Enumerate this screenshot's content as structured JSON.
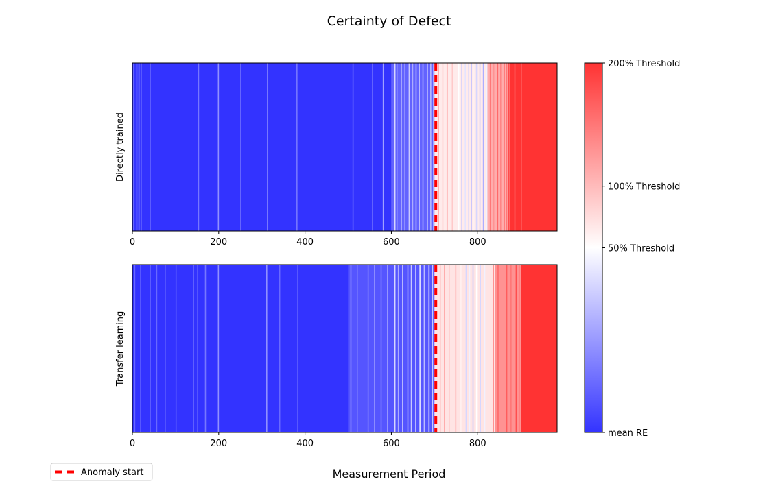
{
  "chart_data": {
    "type": "heatmap",
    "title": "Certainty of Defect",
    "xlabel": "Measurement Period",
    "anomaly_start": 703,
    "legend": {
      "label": "Anomaly start",
      "placement": "bottom-left",
      "color": "#ff0000"
    },
    "colormap": {
      "name": "bwr",
      "low_color": "#3333ff",
      "mid_color": "#ffffff",
      "high_color": "#ff3333",
      "value_range": [
        0,
        3
      ],
      "ticks": [
        {
          "label": "mean RE",
          "value": 0
        },
        {
          "label": "50% Threshold",
          "value": 1.5
        },
        {
          "label": "100% Threshold",
          "value": 2
        },
        {
          "label": "200% Threshold",
          "value": 3
        }
      ]
    },
    "panels": [
      {
        "ylabel": "Directly trained",
        "xlim": [
          0,
          984
        ],
        "xticks": [
          0,
          200,
          400,
          600,
          800
        ],
        "segments": [
          {
            "from": 0,
            "to": 600,
            "value": 0
          },
          {
            "from": 600,
            "to": 700,
            "value": 0.35
          },
          {
            "from": 700,
            "to": 820,
            "value": 1.65
          },
          {
            "from": 820,
            "to": 870,
            "value": 2.1
          },
          {
            "from": 870,
            "to": 984,
            "value": 3
          }
        ],
        "highlights": [
          {
            "at": 2,
            "value": 0.5
          },
          {
            "at": 9,
            "value": 0.5
          },
          {
            "at": 14,
            "value": 0.6
          },
          {
            "at": 19,
            "value": 0.5
          },
          {
            "at": 40,
            "value": 0.4
          },
          {
            "at": 152,
            "value": 0.5
          },
          {
            "at": 198,
            "value": 0.7
          },
          {
            "at": 250,
            "value": 0.5
          },
          {
            "at": 312,
            "value": 0.7
          },
          {
            "at": 380,
            "value": 0.5
          },
          {
            "at": 510,
            "value": 0.4
          },
          {
            "at": 555,
            "value": 0.4
          },
          {
            "at": 580,
            "value": 0.8
          },
          {
            "at": 607,
            "value": 1.2
          },
          {
            "at": 612,
            "value": 0.7
          },
          {
            "at": 622,
            "value": 0.9
          },
          {
            "at": 630,
            "value": 0.8
          },
          {
            "at": 640,
            "value": 1.1
          },
          {
            "at": 648,
            "value": 0.9
          },
          {
            "at": 656,
            "value": 1.0
          },
          {
            "at": 663,
            "value": 1.3
          },
          {
            "at": 672,
            "value": 0.9
          },
          {
            "at": 682,
            "value": 1.2
          },
          {
            "at": 690,
            "value": 1.0
          },
          {
            "at": 697,
            "value": 1.3
          },
          {
            "at": 708,
            "value": 2.1
          },
          {
            "at": 718,
            "value": 1.9
          },
          {
            "at": 728,
            "value": 2.2
          },
          {
            "at": 740,
            "value": 1.9
          },
          {
            "at": 755,
            "value": 1.5
          },
          {
            "at": 762,
            "value": 1.1
          },
          {
            "at": 770,
            "value": 1.3
          },
          {
            "at": 778,
            "value": 1.2
          },
          {
            "at": 784,
            "value": 1.0
          },
          {
            "at": 790,
            "value": 1.6
          },
          {
            "at": 796,
            "value": 1.2
          },
          {
            "at": 804,
            "value": 1.1
          },
          {
            "at": 812,
            "value": 0.9
          },
          {
            "at": 820,
            "value": 1.4
          },
          {
            "at": 828,
            "value": 2.5
          },
          {
            "at": 836,
            "value": 2.3
          },
          {
            "at": 845,
            "value": 2.6
          },
          {
            "at": 852,
            "value": 2.4
          },
          {
            "at": 860,
            "value": 2.7
          },
          {
            "at": 866,
            "value": 2.5
          },
          {
            "at": 872,
            "value": 2.6
          },
          {
            "at": 885,
            "value": 2.6
          },
          {
            "at": 900,
            "value": 2.7
          }
        ]
      },
      {
        "ylabel": "Transfer learning",
        "xlim": [
          0,
          984
        ],
        "xticks": [
          0,
          200,
          400,
          600,
          800
        ],
        "segments": [
          {
            "from": 0,
            "to": 500,
            "value": 0
          },
          {
            "from": 500,
            "to": 700,
            "value": 0.25
          },
          {
            "from": 700,
            "to": 840,
            "value": 1.7
          },
          {
            "from": 840,
            "to": 900,
            "value": 2.3
          },
          {
            "from": 900,
            "to": 984,
            "value": 3
          }
        ],
        "highlights": [
          {
            "at": 4,
            "value": 0.4
          },
          {
            "at": 18,
            "value": 0.4
          },
          {
            "at": 40,
            "value": 0.4
          },
          {
            "at": 55,
            "value": 0.4
          },
          {
            "at": 75,
            "value": 0.3
          },
          {
            "at": 100,
            "value": 0.3
          },
          {
            "at": 140,
            "value": 0.5
          },
          {
            "at": 150,
            "value": 0.4
          },
          {
            "at": 168,
            "value": 0.5
          },
          {
            "at": 198,
            "value": 0.7
          },
          {
            "at": 310,
            "value": 0.7
          },
          {
            "at": 340,
            "value": 0.4
          },
          {
            "at": 382,
            "value": 0.4
          },
          {
            "at": 505,
            "value": 0.7
          },
          {
            "at": 520,
            "value": 0.5
          },
          {
            "at": 545,
            "value": 0.6
          },
          {
            "at": 560,
            "value": 0.8
          },
          {
            "at": 575,
            "value": 0.6
          },
          {
            "at": 590,
            "value": 0.8
          },
          {
            "at": 607,
            "value": 1.2
          },
          {
            "at": 615,
            "value": 0.9
          },
          {
            "at": 625,
            "value": 1.1
          },
          {
            "at": 637,
            "value": 0.9
          },
          {
            "at": 645,
            "value": 1.1
          },
          {
            "at": 655,
            "value": 1.0
          },
          {
            "at": 665,
            "value": 1.3
          },
          {
            "at": 675,
            "value": 1.0
          },
          {
            "at": 686,
            "value": 1.3
          },
          {
            "at": 694,
            "value": 1.1
          },
          {
            "at": 712,
            "value": 2.0
          },
          {
            "at": 722,
            "value": 2.2
          },
          {
            "at": 733,
            "value": 1.9
          },
          {
            "at": 748,
            "value": 2.1
          },
          {
            "at": 760,
            "value": 1.6
          },
          {
            "at": 772,
            "value": 1.2
          },
          {
            "at": 780,
            "value": 1.4
          },
          {
            "at": 788,
            "value": 1.1
          },
          {
            "at": 796,
            "value": 1.5
          },
          {
            "at": 805,
            "value": 1.2
          },
          {
            "at": 815,
            "value": 1.4
          },
          {
            "at": 825,
            "value": 1.7
          },
          {
            "at": 835,
            "value": 2.4
          },
          {
            "at": 846,
            "value": 2.6
          },
          {
            "at": 856,
            "value": 2.3
          },
          {
            "at": 866,
            "value": 2.7
          },
          {
            "at": 876,
            "value": 2.5
          },
          {
            "at": 888,
            "value": 2.8
          },
          {
            "at": 895,
            "value": 2.5
          }
        ]
      }
    ]
  }
}
